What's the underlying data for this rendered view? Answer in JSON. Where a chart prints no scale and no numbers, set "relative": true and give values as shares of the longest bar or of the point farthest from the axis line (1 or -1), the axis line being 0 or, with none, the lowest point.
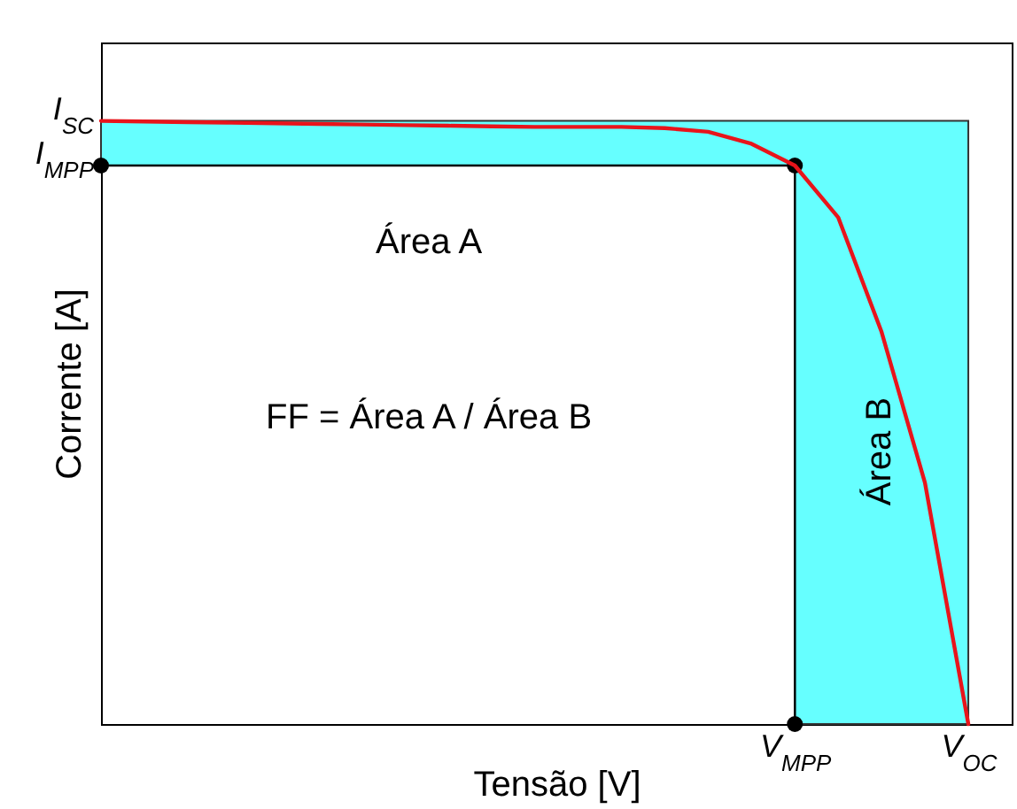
{
  "chart_data": {
    "type": "line",
    "relative": true,
    "xlabel": "Tensão [V]",
    "ylabel": "Corrente [A]",
    "categories": [
      null,
      null,
      null,
      null,
      null,
      null,
      null,
      null,
      null,
      null,
      null,
      null,
      null,
      null,
      null,
      null,
      "V$_{MPP}$",
      null,
      null,
      null,
      "V$_{OC}$",
      null
    ],
    "series": [
      {
        "color": "#e8141b",
        "values": [
          1,
          0.999,
          0.998,
          0.997,
          0.996,
          0.995,
          0.994,
          0.993,
          0.992,
          0.991,
          0.99,
          0.99,
          0.99,
          0.988,
          0.982,
          0.962,
          0.926,
          0.84,
          0.65,
          0.4,
          0,
          null
        ]
      }
    ],
    "annotations": [
      "Área A",
      "FF = Área A / Área B",
      "Área B",
      "I$_{SC}$",
      "I$_{MPP}$"
    ]
  }
}
